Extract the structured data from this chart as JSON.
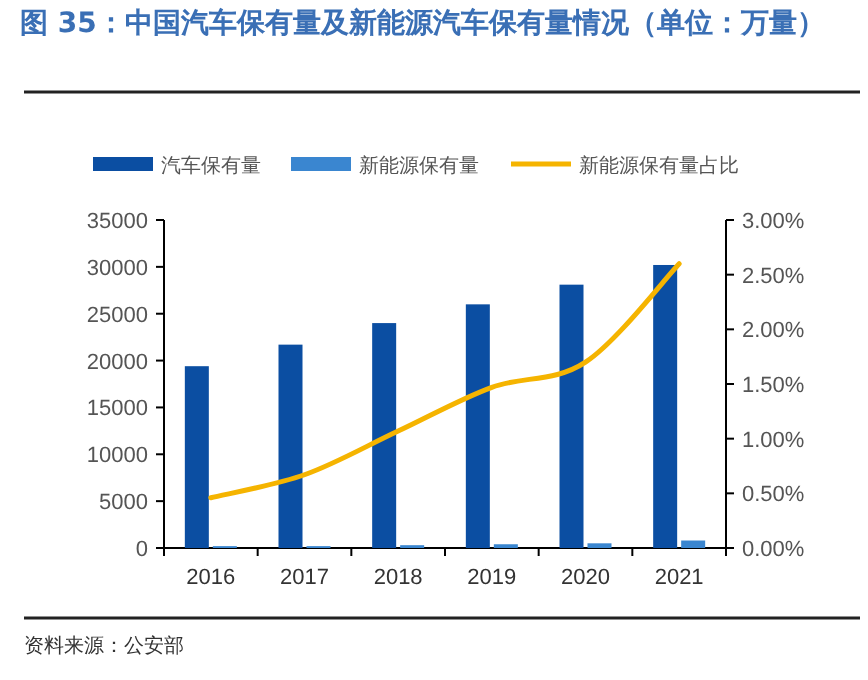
{
  "chart_data": {
    "type": "bar",
    "title": "图 35：中国汽车保有量及新能源汽车保有量情况（单位：万量）",
    "categories": [
      "2016",
      "2017",
      "2018",
      "2019",
      "2020",
      "2021"
    ],
    "series": [
      {
        "name": "汽车保有量",
        "color": "#0b4ea2",
        "values": [
          19400,
          21700,
          24000,
          26000,
          28100,
          30200
        ]
      },
      {
        "name": "新能源保有量",
        "color": "#3a86d0",
        "values": [
          200,
          200,
          300,
          400,
          500,
          800
        ]
      },
      {
        "name": "新能源保有量占比",
        "color": "#f5b400",
        "type": "line",
        "axis": "y2",
        "values": [
          0.46,
          0.67,
          1.07,
          1.47,
          1.7,
          2.6
        ]
      }
    ],
    "ylim": [
      0,
      35000
    ],
    "yticks": [
      0,
      5000,
      10000,
      15000,
      20000,
      25000,
      30000,
      35000
    ],
    "y2lim": [
      0,
      3
    ],
    "y2ticks": [
      {
        "value": 0,
        "label": "0.00%"
      },
      {
        "value": 0.5,
        "label": "0.50%"
      },
      {
        "value": 1,
        "label": "1.00%"
      },
      {
        "value": 1.5,
        "label": "1.50%"
      },
      {
        "value": 2,
        "label": "2.00%"
      },
      {
        "value": 2.5,
        "label": "2.50%"
      },
      {
        "value": 3,
        "label": "3.00%"
      }
    ],
    "legend": "top",
    "grid": false,
    "annotations": [
      "资料来源：公安部"
    ]
  }
}
